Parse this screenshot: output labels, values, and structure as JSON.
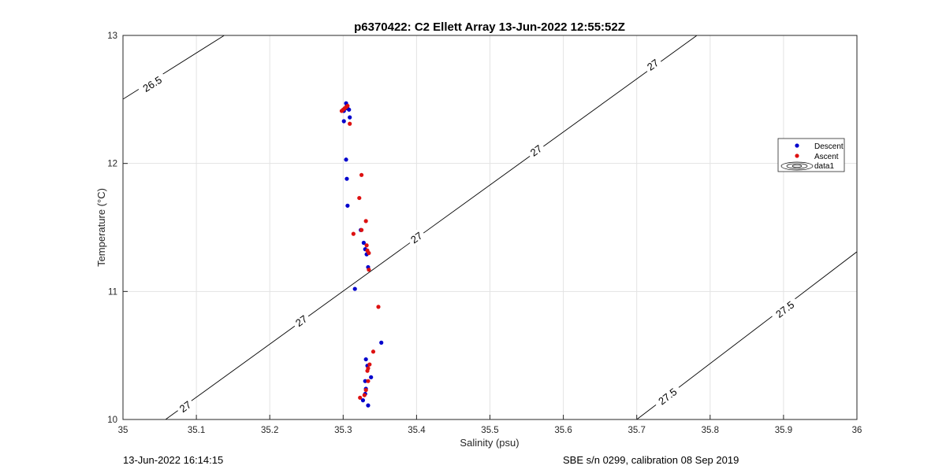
{
  "footer": {
    "left": "13-Jun-2022 16:14:15",
    "right": "SBE s/n 0299, calibration 08 Sep 2019"
  },
  "chart_data": {
    "type": "scatter",
    "title": "p6370422: C2 Ellett Array 13-Jun-2022 12:55:52Z",
    "xlabel": "Salinity (psu)",
    "ylabel": "Temperature (°C)",
    "xlim": [
      35,
      36
    ],
    "ylim": [
      10,
      13
    ],
    "xticks": [
      "35",
      "35.1",
      "35.2",
      "35.3",
      "35.4",
      "35.5",
      "35.6",
      "35.7",
      "35.8",
      "35.9",
      "36"
    ],
    "yticks": [
      "10",
      "11",
      "12",
      "13"
    ],
    "grid": true,
    "legend_position": "right",
    "colors": {
      "descent": "#0000cc",
      "ascent": "#dd1111",
      "contour": "#000000"
    },
    "series": [
      {
        "name": "Descent",
        "points": [
          [
            35.301,
            12.41
          ],
          [
            35.303,
            12.43
          ],
          [
            35.305,
            12.45
          ],
          [
            35.304,
            12.47
          ],
          [
            35.306,
            12.43
          ],
          [
            35.308,
            12.42
          ],
          [
            35.301,
            12.33
          ],
          [
            35.309,
            12.36
          ],
          [
            35.304,
            12.03
          ],
          [
            35.305,
            11.88
          ],
          [
            35.306,
            11.67
          ],
          [
            35.324,
            11.48
          ],
          [
            35.328,
            11.38
          ],
          [
            35.33,
            11.33
          ],
          [
            35.332,
            11.29
          ],
          [
            35.334,
            11.19
          ],
          [
            35.316,
            11.02
          ],
          [
            35.352,
            10.6
          ],
          [
            35.331,
            10.47
          ],
          [
            35.333,
            10.42
          ],
          [
            35.338,
            10.33
          ],
          [
            35.33,
            10.3
          ],
          [
            35.331,
            10.24
          ],
          [
            35.33,
            10.2
          ],
          [
            35.327,
            10.15
          ],
          [
            35.334,
            10.11
          ]
        ]
      },
      {
        "name": "Ascent",
        "points": [
          [
            35.298,
            12.41
          ],
          [
            35.3,
            12.42
          ],
          [
            35.302,
            12.43
          ],
          [
            35.304,
            12.44
          ],
          [
            35.306,
            12.45
          ],
          [
            35.309,
            12.31
          ],
          [
            35.325,
            11.91
          ],
          [
            35.322,
            11.73
          ],
          [
            35.331,
            11.55
          ],
          [
            35.325,
            11.48
          ],
          [
            35.314,
            11.45
          ],
          [
            35.332,
            11.36
          ],
          [
            35.333,
            11.32
          ],
          [
            35.335,
            11.3
          ],
          [
            35.335,
            11.17
          ],
          [
            35.348,
            10.88
          ],
          [
            35.341,
            10.53
          ],
          [
            35.336,
            10.43
          ],
          [
            35.334,
            10.4
          ],
          [
            35.333,
            10.38
          ],
          [
            35.334,
            10.3
          ],
          [
            35.331,
            10.23
          ],
          [
            35.329,
            10.19
          ],
          [
            35.323,
            10.17
          ]
        ]
      },
      {
        "name": "data1",
        "contours": [
          {
            "label": "26.5",
            "line": [
              [
                34.98,
                12.43
              ],
              [
                35.138,
                13.0
              ]
            ],
            "labels": [
              [
                35.04,
                12.62
              ]
            ]
          },
          {
            "label": "27",
            "line": [
              [
                35.058,
                10.0
              ],
              [
                35.782,
                13.0
              ]
            ],
            "labels": [
              [
                35.085,
                10.1
              ],
              [
                35.243,
                10.77
              ],
              [
                35.4,
                11.42
              ],
              [
                35.563,
                12.1
              ],
              [
                35.722,
                12.77
              ]
            ]
          },
          {
            "label": "27.5",
            "line": [
              [
                35.7,
                10.0
              ],
              [
                36.0,
                11.31
              ]
            ],
            "labels": [
              [
                35.742,
                10.18
              ],
              [
                35.902,
                10.86
              ]
            ]
          }
        ]
      }
    ]
  }
}
